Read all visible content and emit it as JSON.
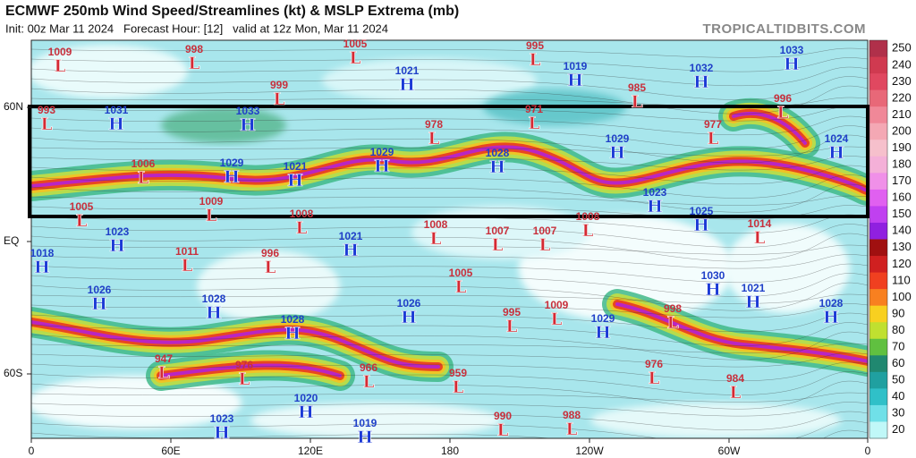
{
  "header": {
    "title": "ECMWF 250mb Wind Speed/Streamlines (kt) & MSLP Extrema (mb)",
    "init": "Init: 00z Mar 11 2024   Forecast Hour: [12]   valid at 12z Mon, Mar 11 2024",
    "site": "TROPICALTIDBITS.COM"
  },
  "map": {
    "lat_labels": [
      "60N",
      "EQ",
      "60S"
    ],
    "lon_labels": [
      "0",
      "60E",
      "120E",
      "180",
      "120W",
      "60W",
      "0"
    ],
    "systems": [
      {
        "type": "L",
        "value": 1009
      },
      {
        "type": "L",
        "value": 998
      },
      {
        "type": "L",
        "value": 1005
      },
      {
        "type": "L",
        "value": 995
      },
      {
        "type": "H",
        "value": 1033
      },
      {
        "type": "H",
        "value": 1021
      },
      {
        "type": "H",
        "value": 1019
      },
      {
        "type": "H",
        "value": 1032
      },
      {
        "type": "L",
        "value": 999
      },
      {
        "type": "L",
        "value": 985
      },
      {
        "type": "L",
        "value": 996
      },
      {
        "type": "L",
        "value": 993
      },
      {
        "type": "H",
        "value": 1031
      },
      {
        "type": "H",
        "value": 1033
      },
      {
        "type": "L",
        "value": 978
      },
      {
        "type": "L",
        "value": 971
      },
      {
        "type": "L",
        "value": 977
      },
      {
        "type": "H",
        "value": 1029
      },
      {
        "type": "H",
        "value": 1024
      },
      {
        "type": "L",
        "value": 1006
      },
      {
        "type": "H",
        "value": 1029
      },
      {
        "type": "H",
        "value": 1029
      },
      {
        "type": "H",
        "value": 1028
      },
      {
        "type": "H",
        "value": 1021
      },
      {
        "type": "L",
        "value": 1009
      },
      {
        "type": "L",
        "value": 1005
      },
      {
        "type": "L",
        "value": 1008
      },
      {
        "type": "L",
        "value": 1008
      },
      {
        "type": "L",
        "value": 1007
      },
      {
        "type": "L",
        "value": 1007
      },
      {
        "type": "L",
        "value": 1008
      },
      {
        "type": "H",
        "value": 1023
      },
      {
        "type": "H",
        "value": 1025
      },
      {
        "type": "L",
        "value": 1014
      },
      {
        "type": "H",
        "value": 1023
      },
      {
        "type": "H",
        "value": 1018
      },
      {
        "type": "L",
        "value": 1011
      },
      {
        "type": "L",
        "value": 996
      },
      {
        "type": "H",
        "value": 1021
      },
      {
        "type": "L",
        "value": 1005
      },
      {
        "type": "H",
        "value": 1030
      },
      {
        "type": "H",
        "value": 1021
      },
      {
        "type": "H",
        "value": 1026
      },
      {
        "type": "H",
        "value": 1028
      },
      {
        "type": "H",
        "value": 1026
      },
      {
        "type": "L",
        "value": 995
      },
      {
        "type": "L",
        "value": 1009
      },
      {
        "type": "H",
        "value": 1029
      },
      {
        "type": "L",
        "value": 998
      },
      {
        "type": "H",
        "value": 1028
      },
      {
        "type": "H",
        "value": 1028
      },
      {
        "type": "L",
        "value": 947
      },
      {
        "type": "L",
        "value": 976
      },
      {
        "type": "L",
        "value": 966
      },
      {
        "type": "L",
        "value": 959
      },
      {
        "type": "L",
        "value": 976
      },
      {
        "type": "L",
        "value": 984
      },
      {
        "type": "H",
        "value": 1020
      },
      {
        "type": "H",
        "value": 1023
      },
      {
        "type": "H",
        "value": 1019
      },
      {
        "type": "L",
        "value": 990
      },
      {
        "type": "L",
        "value": 988
      }
    ]
  },
  "colorbar": {
    "labels": [
      250,
      240,
      230,
      220,
      210,
      200,
      190,
      180,
      170,
      160,
      150,
      140,
      130,
      120,
      110,
      100,
      90,
      80,
      70,
      60,
      50,
      40,
      30,
      20
    ],
    "colors": [
      "#b0304a",
      "#d03a50",
      "#e04860",
      "#e86878",
      "#f08898",
      "#f4a8b4",
      "#f6c0cc",
      "#f4b0d8",
      "#f090e8",
      "#e060f0",
      "#c040f0",
      "#9020e0",
      "#a01010",
      "#d02020",
      "#f04020",
      "#f88020",
      "#f8d020",
      "#c0e030",
      "#60c040",
      "#208870",
      "#20a0a0",
      "#30c0c8",
      "#70e0e8",
      "#c0f8f8"
    ]
  }
}
